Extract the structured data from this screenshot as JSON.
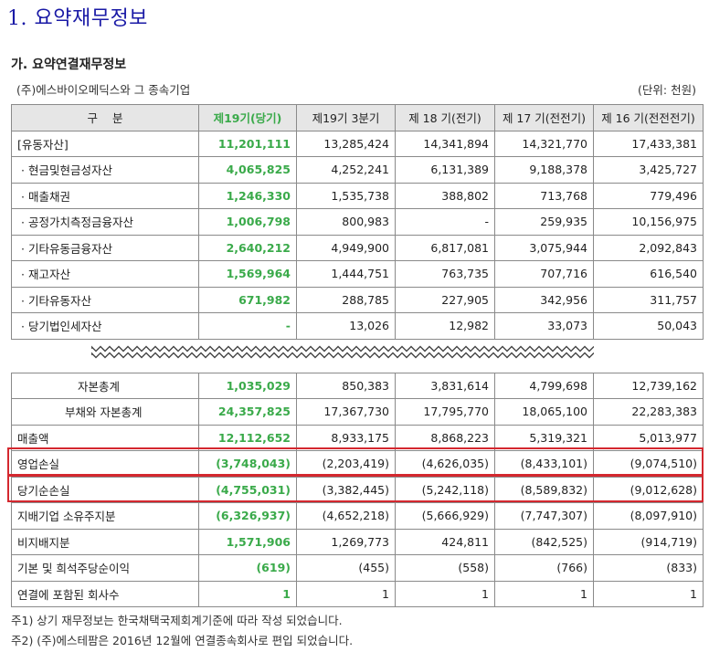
{
  "title": "1. 요약재무정보",
  "subtitle": "가. 요약연결재무정보",
  "company": "(주)에스바이오메딕스와 그 종속기업",
  "unit": "(단위: 천원)",
  "headers": [
    "구    분",
    "제19기(당기)",
    "제19기 3분기",
    "제 18 기(전기)",
    "제 17 기(전전기)",
    "제 16 기(전전전기)"
  ],
  "rows_top": [
    {
      "label": "[유동자산]",
      "values": [
        "11,201,111",
        "13,285,424",
        "14,341,894",
        "14,321,770",
        "17,433,381"
      ]
    },
    {
      "label": "· 현금및현금성자산",
      "values": [
        "4,065,825",
        "4,252,241",
        "6,131,389",
        "9,188,378",
        "3,425,727"
      ]
    },
    {
      "label": "· 매출채권",
      "values": [
        "1,246,330",
        "1,535,738",
        "388,802",
        "713,768",
        "779,496"
      ]
    },
    {
      "label": "· 공정가치측정금융자산",
      "values": [
        "1,006,798",
        "800,983",
        "-",
        "259,935",
        "10,156,975"
      ]
    },
    {
      "label": "· 기타유동금융자산",
      "values": [
        "2,640,212",
        "4,949,900",
        "6,817,081",
        "3,075,944",
        "2,092,843"
      ]
    },
    {
      "label": "· 재고자산",
      "values": [
        "1,569,964",
        "1,444,751",
        "763,735",
        "707,716",
        "616,540"
      ]
    },
    {
      "label": "· 기타유동자산",
      "values": [
        "671,982",
        "288,785",
        "227,905",
        "342,956",
        "311,757"
      ]
    },
    {
      "label": "· 당기법인세자산",
      "values": [
        "-",
        "13,026",
        "12,982",
        "33,073",
        "50,043"
      ]
    }
  ],
  "rows_bottom": [
    {
      "label": "자본총계",
      "values": [
        "1,035,029",
        "850,383",
        "3,831,614",
        "4,799,698",
        "12,739,162"
      ]
    },
    {
      "label": "부채와 자본총계",
      "values": [
        "24,357,825",
        "17,367,730",
        "17,795,770",
        "18,065,100",
        "22,283,383"
      ]
    },
    {
      "label": "매출액",
      "values": [
        "12,112,652",
        "8,933,175",
        "8,868,223",
        "5,319,321",
        "5,013,977"
      ]
    },
    {
      "label": "영업손실",
      "values": [
        "(3,748,043)",
        "(2,203,419)",
        "(4,626,035)",
        "(8,433,101)",
        "(9,074,510)"
      ]
    },
    {
      "label": "당기순손실",
      "values": [
        "(4,755,031)",
        "(3,382,445)",
        "(5,242,118)",
        "(8,589,832)",
        "(9,012,628)"
      ]
    },
    {
      "label": "지배기업 소유주지분",
      "values": [
        "(6,326,937)",
        "(4,652,218)",
        "(5,666,929)",
        "(7,747,307)",
        "(8,097,910)"
      ]
    },
    {
      "label": "비지배지분",
      "values": [
        "1,571,906",
        "1,269,773",
        "424,811",
        "(842,525)",
        "(914,719)"
      ]
    },
    {
      "label": "기본 및 희석주당순이익",
      "values": [
        "(619)",
        "(455)",
        "(558)",
        "(766)",
        "(833)"
      ]
    },
    {
      "label": "연결에 포함된 회사수",
      "values": [
        "1",
        "1",
        "1",
        "1",
        "1"
      ]
    }
  ],
  "notes": [
    "주1) 상기 재무정보는 한국채택국제회계기준에 따라 작성 되었습니다.",
    "주2) (주)에스테팜은 2016년 12월에 연결종속회사로 편입 되었습니다."
  ],
  "colors": {
    "current_period": "#3aaa4a",
    "title": "#1a1aa6",
    "highlight_box": "#d4282f"
  }
}
